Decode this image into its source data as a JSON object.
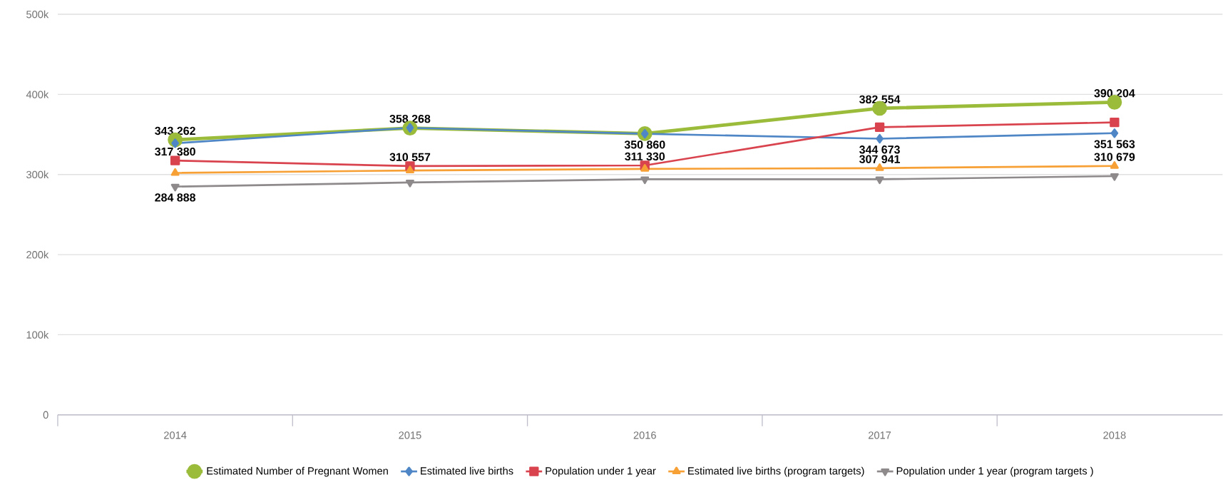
{
  "chart_data": {
    "type": "line",
    "categories": [
      "2014",
      "2015",
      "2016",
      "2017",
      "2018"
    ],
    "series": [
      {
        "name": "Estimated Number of Pregnant Women",
        "color": "#9bbb3b",
        "marker": "circle",
        "values": [
          343262,
          358000,
          351000,
          382554,
          390204
        ],
        "value_labels": [
          "343 262",
          null,
          null,
          "382 554",
          "390 204"
        ]
      },
      {
        "name": "Estimated live births",
        "color": "#4f86c6",
        "marker": "diamond",
        "values": [
          339000,
          358268,
          350860,
          344673,
          351563
        ],
        "value_labels": [
          null,
          "358 268",
          "350 860",
          "344 673",
          "351 563"
        ]
      },
      {
        "name": "Population under 1 year",
        "color": "#d9434e",
        "marker": "square",
        "values": [
          317380,
          310557,
          311330,
          359000,
          365000
        ],
        "value_labels": [
          "317 380",
          "310 557",
          "311 330",
          null,
          null
        ]
      },
      {
        "name": "Estimated live births (program targets)",
        "color": "#f7a035",
        "marker": "triangle",
        "values": [
          302000,
          305000,
          307000,
          307941,
          310679
        ],
        "value_labels": [
          null,
          null,
          null,
          "307 941",
          "310 679"
        ]
      },
      {
        "name": "Population under 1 year (program targets )",
        "color": "#8e8a8c",
        "marker": "triangle_down",
        "values": [
          284888,
          290000,
          294000,
          294000,
          298000
        ],
        "value_labels": [
          "284 888",
          null,
          null,
          null,
          null
        ]
      }
    ],
    "ylim": [
      0,
      500000
    ],
    "yticks": [
      {
        "value": 0,
        "label": "0"
      },
      {
        "value": 100000,
        "label": "100k"
      },
      {
        "value": 200000,
        "label": "200k"
      },
      {
        "value": 300000,
        "label": "300k"
      },
      {
        "value": 400000,
        "label": "400k"
      },
      {
        "value": 500000,
        "label": "500k"
      }
    ],
    "grid": "y",
    "legend": "bottom"
  }
}
